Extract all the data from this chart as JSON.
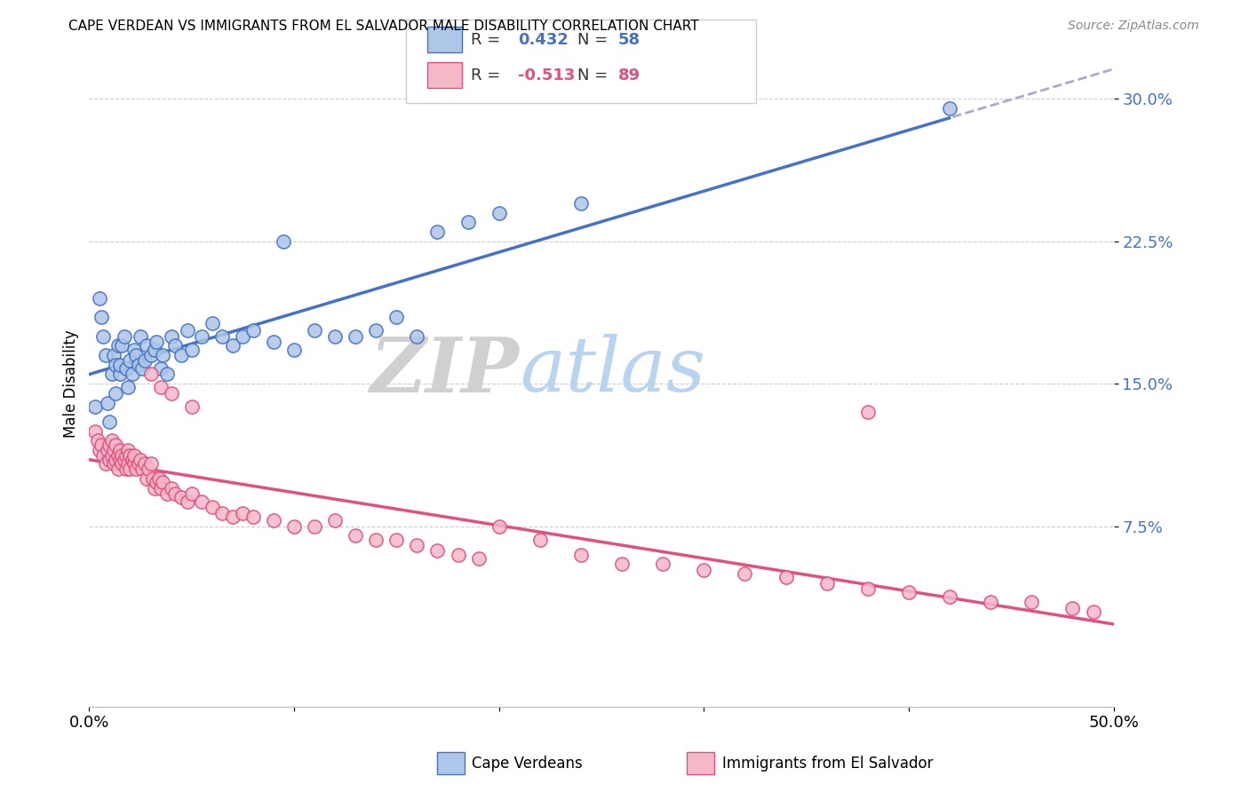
{
  "title": "CAPE VERDEAN VS IMMIGRANTS FROM EL SALVADOR MALE DISABILITY CORRELATION CHART",
  "source": "Source: ZipAtlas.com",
  "ylabel": "Male Disability",
  "ytick_vals": [
    0.075,
    0.15,
    0.225,
    0.3
  ],
  "ytick_labels": [
    "7.5%",
    "15.0%",
    "22.5%",
    "30.0%"
  ],
  "xlim": [
    0.0,
    0.5
  ],
  "ylim": [
    -0.02,
    0.32
  ],
  "legend_blue_label": "Cape Verdeans",
  "legend_pink_label": "Immigrants from El Salvador",
  "r_blue": 0.432,
  "n_blue": 58,
  "r_pink": -0.513,
  "n_pink": 89,
  "color_blue_fill": "#aec6e8",
  "color_blue_edge": "#4472c4",
  "color_pink_fill": "#f4b8c8",
  "color_pink_edge": "#e05080",
  "color_blue_line": "#4472c4",
  "color_pink_line": "#e05080",
  "watermark_zip": "ZIP",
  "watermark_atlas": "atlas",
  "blue_scatter_x": [
    0.003,
    0.005,
    0.006,
    0.007,
    0.008,
    0.009,
    0.01,
    0.011,
    0.012,
    0.013,
    0.013,
    0.014,
    0.015,
    0.015,
    0.016,
    0.017,
    0.018,
    0.019,
    0.02,
    0.021,
    0.022,
    0.023,
    0.024,
    0.025,
    0.026,
    0.027,
    0.028,
    0.03,
    0.032,
    0.033,
    0.035,
    0.036,
    0.038,
    0.04,
    0.042,
    0.045,
    0.048,
    0.05,
    0.055,
    0.06,
    0.065,
    0.07,
    0.075,
    0.08,
    0.09,
    0.095,
    0.1,
    0.11,
    0.12,
    0.13,
    0.14,
    0.15,
    0.16,
    0.17,
    0.185,
    0.2,
    0.24,
    0.42
  ],
  "blue_scatter_y": [
    0.138,
    0.195,
    0.185,
    0.175,
    0.165,
    0.14,
    0.13,
    0.155,
    0.165,
    0.145,
    0.16,
    0.17,
    0.155,
    0.16,
    0.17,
    0.175,
    0.158,
    0.148,
    0.162,
    0.155,
    0.168,
    0.165,
    0.16,
    0.175,
    0.158,
    0.162,
    0.17,
    0.165,
    0.168,
    0.172,
    0.158,
    0.165,
    0.155,
    0.175,
    0.17,
    0.165,
    0.178,
    0.168,
    0.175,
    0.182,
    0.175,
    0.17,
    0.175,
    0.178,
    0.172,
    0.225,
    0.168,
    0.178,
    0.175,
    0.175,
    0.178,
    0.185,
    0.175,
    0.23,
    0.235,
    0.24,
    0.245,
    0.295
  ],
  "pink_scatter_x": [
    0.003,
    0.004,
    0.005,
    0.006,
    0.007,
    0.008,
    0.009,
    0.01,
    0.01,
    0.011,
    0.011,
    0.012,
    0.012,
    0.013,
    0.013,
    0.014,
    0.014,
    0.015,
    0.015,
    0.016,
    0.016,
    0.017,
    0.018,
    0.018,
    0.019,
    0.019,
    0.02,
    0.02,
    0.021,
    0.022,
    0.022,
    0.023,
    0.024,
    0.025,
    0.026,
    0.027,
    0.028,
    0.029,
    0.03,
    0.031,
    0.032,
    0.033,
    0.034,
    0.035,
    0.036,
    0.038,
    0.04,
    0.042,
    0.045,
    0.048,
    0.05,
    0.055,
    0.06,
    0.065,
    0.07,
    0.075,
    0.08,
    0.09,
    0.1,
    0.11,
    0.12,
    0.13,
    0.14,
    0.15,
    0.16,
    0.17,
    0.18,
    0.19,
    0.2,
    0.22,
    0.24,
    0.26,
    0.28,
    0.3,
    0.32,
    0.34,
    0.36,
    0.38,
    0.4,
    0.42,
    0.44,
    0.46,
    0.48,
    0.49,
    0.03,
    0.035,
    0.04,
    0.05,
    0.38
  ],
  "pink_scatter_y": [
    0.125,
    0.12,
    0.115,
    0.118,
    0.112,
    0.108,
    0.115,
    0.11,
    0.118,
    0.112,
    0.12,
    0.115,
    0.108,
    0.11,
    0.118,
    0.112,
    0.105,
    0.115,
    0.11,
    0.112,
    0.108,
    0.11,
    0.105,
    0.112,
    0.108,
    0.115,
    0.112,
    0.105,
    0.11,
    0.108,
    0.112,
    0.105,
    0.108,
    0.11,
    0.105,
    0.108,
    0.1,
    0.105,
    0.108,
    0.1,
    0.095,
    0.098,
    0.1,
    0.095,
    0.098,
    0.092,
    0.095,
    0.092,
    0.09,
    0.088,
    0.092,
    0.088,
    0.085,
    0.082,
    0.08,
    0.082,
    0.08,
    0.078,
    0.075,
    0.075,
    0.078,
    0.07,
    0.068,
    0.068,
    0.065,
    0.062,
    0.06,
    0.058,
    0.075,
    0.068,
    0.06,
    0.055,
    0.055,
    0.052,
    0.05,
    0.048,
    0.045,
    0.042,
    0.04,
    0.038,
    0.035,
    0.035,
    0.032,
    0.03,
    0.155,
    0.148,
    0.145,
    0.138,
    0.135
  ]
}
